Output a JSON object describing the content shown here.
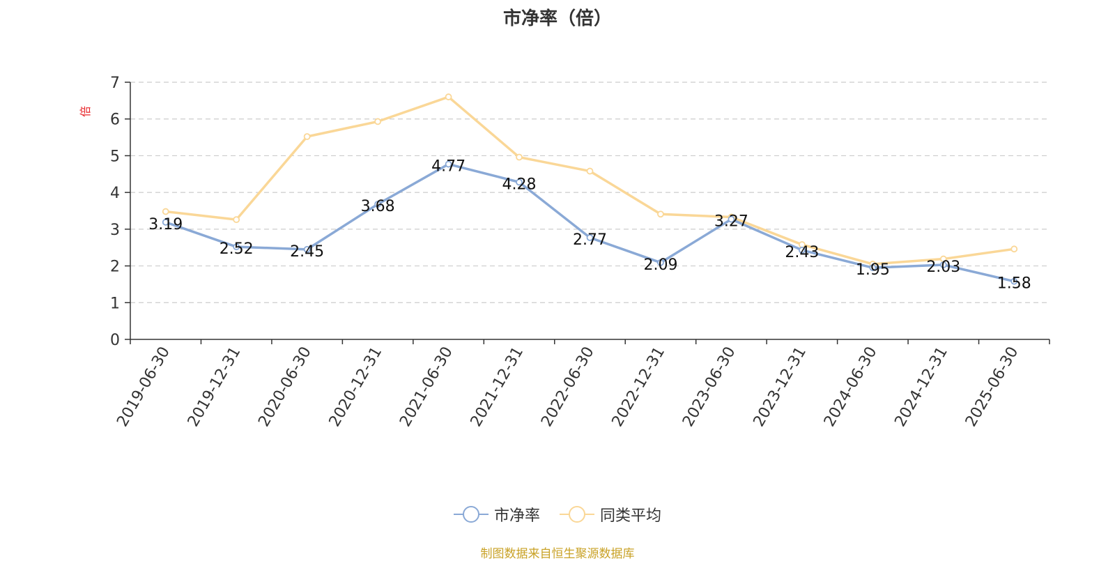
{
  "title": "市净率（倍）",
  "source_note": "制图数据来自恒生聚源数据库",
  "colors": {
    "series1": "#8aa9d6",
    "series2": "#fad797",
    "axis": "#333333",
    "grid": "#cccccc",
    "ylabel": "#e8262a",
    "label": "#111111"
  },
  "chart_data": {
    "type": "line",
    "title": "市净率（倍）",
    "ylabel": "倍",
    "xlabel": "",
    "ylim": [
      0,
      7
    ],
    "yticks": [
      0,
      1,
      2,
      3,
      4,
      5,
      6,
      7
    ],
    "grid": true,
    "legend_position": "bottom-center",
    "categories": [
      "2019-06-30",
      "2019-12-31",
      "2020-06-30",
      "2020-12-31",
      "2021-06-30",
      "2021-12-31",
      "2022-06-30",
      "2022-12-31",
      "2023-06-30",
      "2023-12-31",
      "2024-06-30",
      "2024-12-31",
      "2025-06-30"
    ],
    "series": [
      {
        "name": "市净率",
        "values": [
          3.19,
          2.52,
          2.45,
          3.68,
          4.77,
          4.28,
          2.77,
          2.09,
          3.27,
          2.43,
          1.95,
          2.03,
          1.58
        ],
        "labels": [
          "3.19",
          "2.52",
          "2.45",
          "3.68",
          "4.77",
          "4.28",
          "2.77",
          "2.09",
          "3.27",
          "2.43",
          "1.95",
          "2.03",
          "1.58"
        ]
      },
      {
        "name": "同类平均",
        "values": [
          3.48,
          3.26,
          5.52,
          5.93,
          6.6,
          4.96,
          4.58,
          3.41,
          3.33,
          2.58,
          2.05,
          2.19,
          2.46
        ]
      }
    ]
  }
}
